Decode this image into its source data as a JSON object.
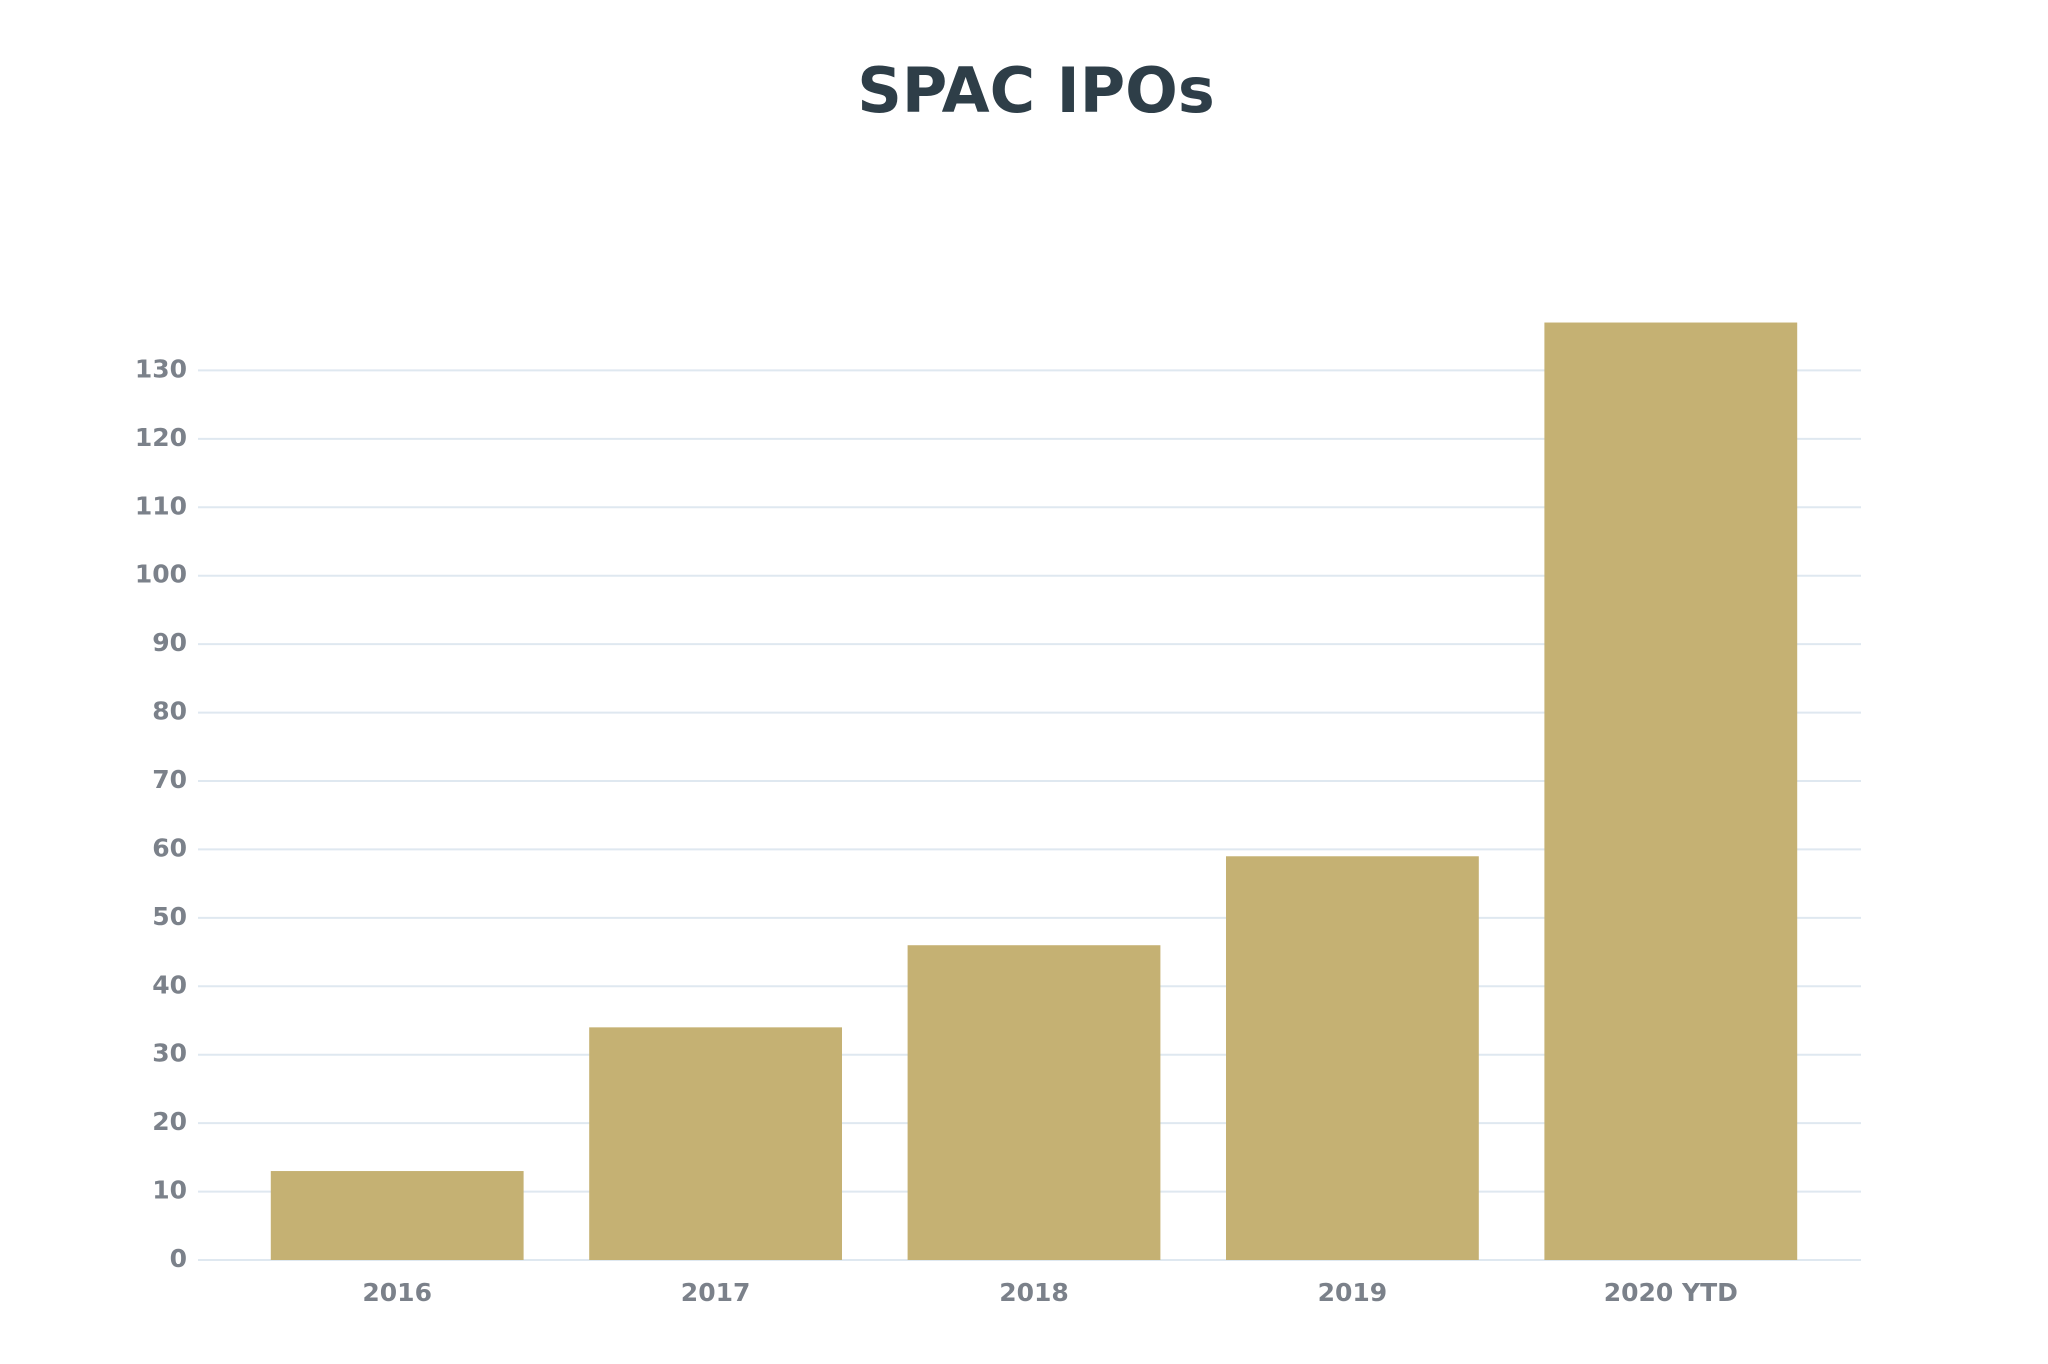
{
  "chart_data": {
    "type": "bar",
    "title": "SPAC IPOs",
    "categories": [
      "2016",
      "2017",
      "2018",
      "2019",
      "2020 YTD"
    ],
    "values": [
      13,
      34,
      46,
      59,
      137
    ],
    "color": "#c5b173",
    "ylim": [
      0,
      140
    ],
    "yticks": [
      0,
      10,
      20,
      30,
      40,
      50,
      60,
      70,
      80,
      90,
      100,
      110,
      120,
      130
    ],
    "grid": true
  }
}
